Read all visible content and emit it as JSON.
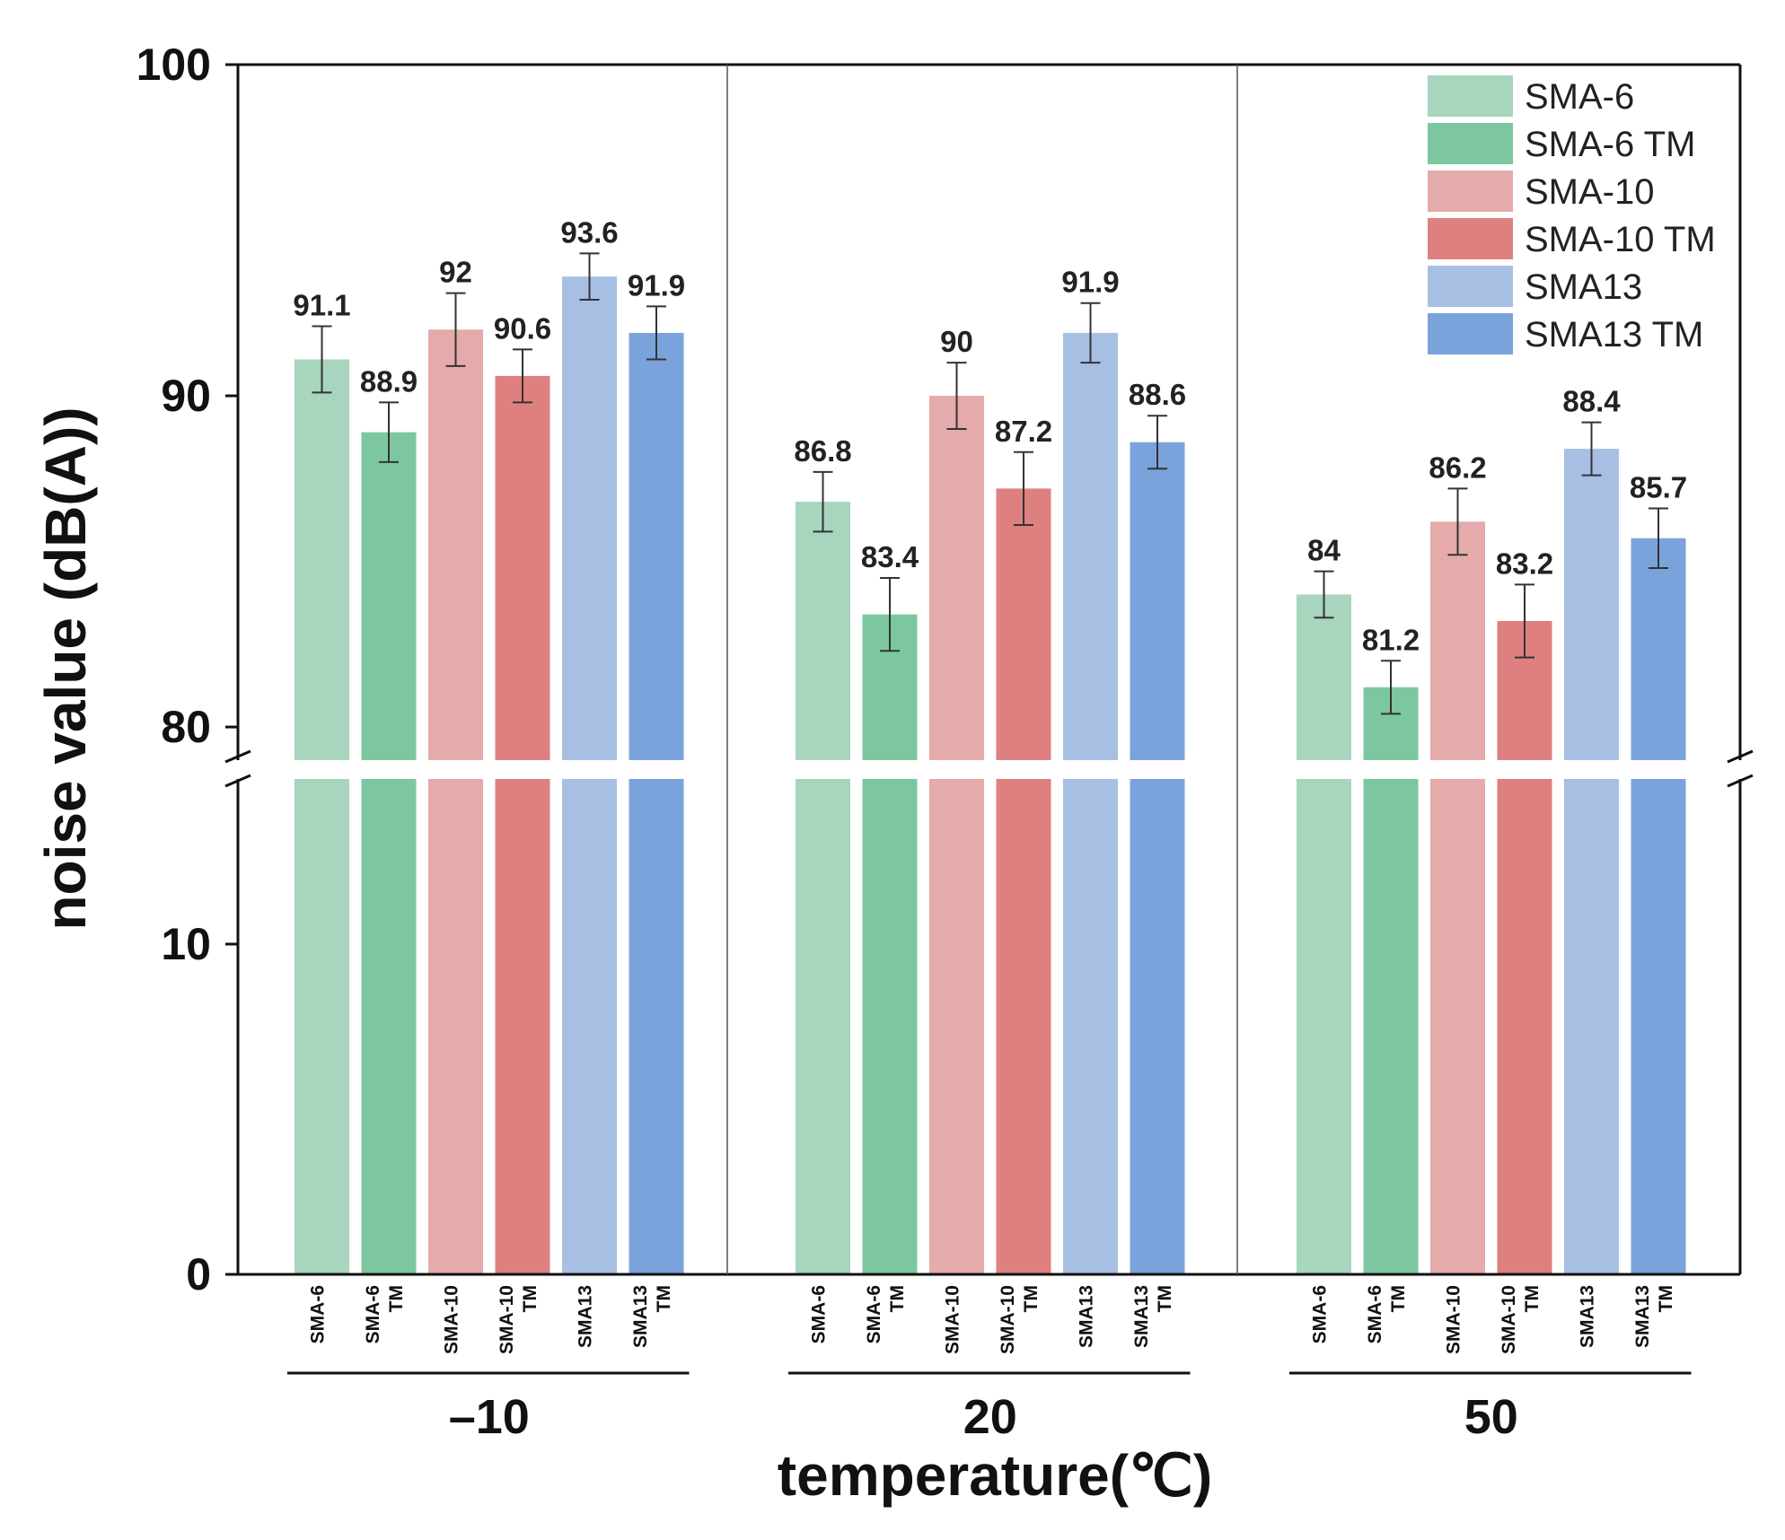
{
  "chart_data": {
    "type": "bar",
    "title": "",
    "xlabel": "temperature(℃)",
    "ylabel": "noise value (dB(A))",
    "groups": [
      "–10",
      "20",
      "50"
    ],
    "series": [
      {
        "name": "SMA-6",
        "category_label": [
          "SMA-6"
        ],
        "color": "#a8d5bd",
        "values": [
          91.1,
          86.8,
          84
        ],
        "errors": [
          1.0,
          0.9,
          0.7
        ]
      },
      {
        "name": "SMA-6 TM",
        "category_label": [
          "SMA-6",
          "TM"
        ],
        "color": "#7cc79f",
        "values": [
          88.9,
          83.4,
          81.2
        ],
        "errors": [
          0.9,
          1.1,
          0.8
        ]
      },
      {
        "name": "SMA-10",
        "category_label": [
          "SMA-10"
        ],
        "color": "#e5aaaa",
        "values": [
          92,
          90,
          86.2
        ],
        "errors": [
          1.1,
          1.0,
          1.0
        ]
      },
      {
        "name": "SMA-10 TM",
        "category_label": [
          "SMA-10",
          "TM"
        ],
        "color": "#de7f80",
        "values": [
          90.6,
          87.2,
          83.2
        ],
        "errors": [
          0.8,
          1.1,
          1.1
        ]
      },
      {
        "name": "SMA13",
        "category_label": [
          "SMA13"
        ],
        "color": "#a7bfe3",
        "values": [
          93.6,
          91.9,
          88.4
        ],
        "errors": [
          0.7,
          0.9,
          0.8
        ]
      },
      {
        "name": "SMA13 TM",
        "category_label": [
          "SMA13",
          "TM"
        ],
        "color": "#7aa3dc",
        "values": [
          91.9,
          88.6,
          85.7
        ],
        "errors": [
          0.8,
          0.8,
          0.9
        ]
      }
    ],
    "y_axis_upper": {
      "range": [
        79,
        100
      ],
      "ticks": [
        80,
        90,
        100
      ]
    },
    "y_axis_lower": {
      "range": [
        0,
        15
      ],
      "ticks": [
        0,
        10
      ]
    },
    "axis_break": true,
    "legend": "top-right",
    "grid": false
  }
}
